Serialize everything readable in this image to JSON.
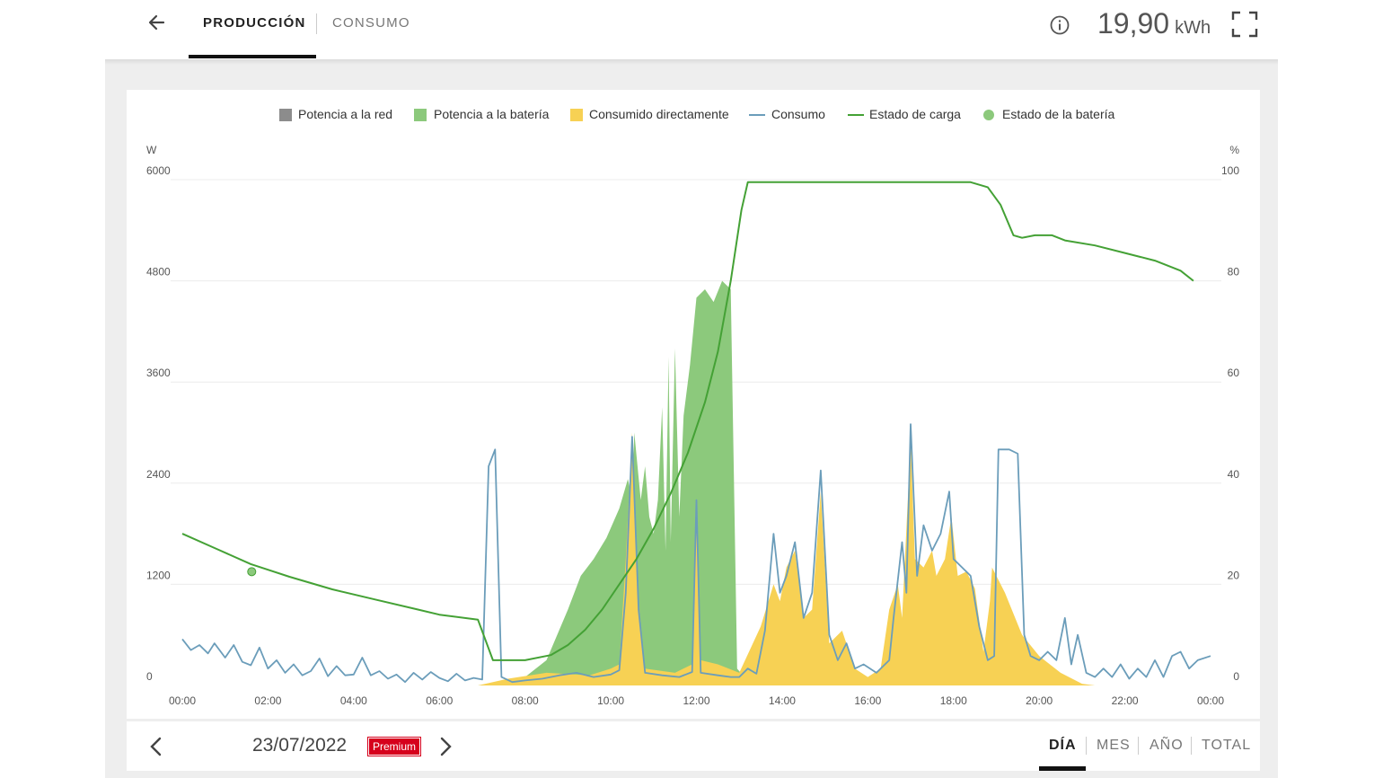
{
  "header": {
    "tabs": [
      {
        "label": "PRODUCCIÓN",
        "active": true
      },
      {
        "label": "CONSUMO",
        "active": false
      }
    ],
    "energy_value": "19,90",
    "energy_unit": "kWh",
    "icons": {
      "back": "arrow-left-icon",
      "info": "info-icon",
      "fullscreen": "fullscreen-icon"
    }
  },
  "colors": {
    "grid_power": "#8c8c8c",
    "battery_power": "#8cc97c",
    "direct_consumption": "#f7d154",
    "consumption_line": "#6b9dba",
    "state_of_charge": "#44a135",
    "battery_state": "#8cc97c"
  },
  "chart_data": {
    "type": "area",
    "legend_position": "top-center",
    "legend": [
      "Potencia a la red",
      "Potencia a la batería",
      "Consumido directamente",
      "Consumo",
      "Estado de carga",
      "Estado de la batería"
    ],
    "y_left": {
      "label": "W",
      "ticks": [
        "0",
        "1200",
        "2400",
        "3600",
        "4800",
        "6000"
      ],
      "min": 0,
      "max": 6000
    },
    "y_right": {
      "label": "%",
      "ticks": [
        "0",
        "20",
        "40",
        "60",
        "80",
        "100"
      ],
      "min": 0,
      "max": 100
    },
    "x_ticks": [
      "00:00",
      "02:00",
      "04:00",
      "06:00",
      "08:00",
      "10:00",
      "12:00",
      "14:00",
      "16:00",
      "18:00",
      "20:00",
      "22:00",
      "00:00"
    ],
    "grid": true,
    "series": [
      {
        "name": "Potencia a la batería",
        "kind": "area",
        "points": [
          [
            6.9,
            0
          ],
          [
            7.5,
            20
          ],
          [
            8.0,
            100
          ],
          [
            8.5,
            300
          ],
          [
            9.0,
            900
          ],
          [
            9.3,
            1300
          ],
          [
            9.6,
            1500
          ],
          [
            9.9,
            1750
          ],
          [
            10.2,
            2100
          ],
          [
            10.4,
            2450
          ],
          [
            10.5,
            2200
          ],
          [
            10.55,
            3000
          ],
          [
            10.7,
            2200
          ],
          [
            10.8,
            2600
          ],
          [
            10.9,
            2000
          ],
          [
            11.0,
            1800
          ],
          [
            11.1,
            2200
          ],
          [
            11.2,
            3300
          ],
          [
            11.28,
            1600
          ],
          [
            11.35,
            3900
          ],
          [
            11.4,
            1700
          ],
          [
            11.5,
            4000
          ],
          [
            11.6,
            2000
          ],
          [
            11.7,
            3200
          ],
          [
            11.85,
            3800
          ],
          [
            12.0,
            4600
          ],
          [
            12.2,
            4700
          ],
          [
            12.4,
            4550
          ],
          [
            12.6,
            4800
          ],
          [
            12.8,
            4700
          ],
          [
            12.95,
            200
          ],
          [
            13.2,
            50
          ],
          [
            13.6,
            20
          ],
          [
            14.2,
            10
          ]
        ]
      },
      {
        "name": "Consumido directamente",
        "kind": "area",
        "points": [
          [
            6.9,
            0
          ],
          [
            7.6,
            80
          ],
          [
            8.5,
            150
          ],
          [
            9.5,
            120
          ],
          [
            10.0,
            200
          ],
          [
            10.2,
            250
          ],
          [
            10.35,
            1500
          ],
          [
            10.5,
            3000
          ],
          [
            10.65,
            1000
          ],
          [
            10.8,
            200
          ],
          [
            11.5,
            150
          ],
          [
            11.9,
            250
          ],
          [
            12.0,
            2200
          ],
          [
            12.1,
            300
          ],
          [
            12.5,
            250
          ],
          [
            13.0,
            150
          ],
          [
            13.5,
            700
          ],
          [
            13.8,
            1200
          ],
          [
            13.95,
            1000
          ],
          [
            14.1,
            1400
          ],
          [
            14.3,
            1600
          ],
          [
            14.5,
            800
          ],
          [
            14.7,
            900
          ],
          [
            14.9,
            2300
          ],
          [
            15.1,
            500
          ],
          [
            15.4,
            650
          ],
          [
            15.7,
            200
          ],
          [
            16.0,
            100
          ],
          [
            16.3,
            200
          ],
          [
            16.5,
            900
          ],
          [
            16.7,
            1200
          ],
          [
            16.8,
            800
          ],
          [
            17.0,
            2900
          ],
          [
            17.1,
            1500
          ],
          [
            17.3,
            1400
          ],
          [
            17.5,
            1600
          ],
          [
            17.6,
            1300
          ],
          [
            17.8,
            1500
          ],
          [
            17.95,
            2000
          ],
          [
            18.1,
            1300
          ],
          [
            18.3,
            1350
          ],
          [
            18.5,
            1150
          ],
          [
            18.7,
            400
          ],
          [
            18.85,
            1000
          ],
          [
            18.9,
            1400
          ],
          [
            19.2,
            1100
          ],
          [
            19.6,
            600
          ],
          [
            20.0,
            350
          ],
          [
            20.5,
            150
          ],
          [
            21.0,
            20
          ],
          [
            21.3,
            0
          ]
        ]
      },
      {
        "name": "Consumo",
        "kind": "line",
        "points": [
          [
            0.0,
            550
          ],
          [
            0.2,
            420
          ],
          [
            0.4,
            480
          ],
          [
            0.6,
            380
          ],
          [
            0.75,
            500
          ],
          [
            1.0,
            330
          ],
          [
            1.2,
            480
          ],
          [
            1.4,
            280
          ],
          [
            1.6,
            240
          ],
          [
            1.8,
            450
          ],
          [
            2.0,
            200
          ],
          [
            2.2,
            300
          ],
          [
            2.4,
            150
          ],
          [
            2.6,
            250
          ],
          [
            2.8,
            120
          ],
          [
            3.0,
            170
          ],
          [
            3.2,
            320
          ],
          [
            3.4,
            110
          ],
          [
            3.6,
            230
          ],
          [
            3.8,
            120
          ],
          [
            4.0,
            130
          ],
          [
            4.2,
            330
          ],
          [
            4.4,
            120
          ],
          [
            4.6,
            170
          ],
          [
            4.8,
            80
          ],
          [
            5.0,
            130
          ],
          [
            5.2,
            40
          ],
          [
            5.4,
            150
          ],
          [
            5.6,
            70
          ],
          [
            5.8,
            160
          ],
          [
            6.0,
            90
          ],
          [
            6.2,
            50
          ],
          [
            6.4,
            140
          ],
          [
            6.6,
            60
          ],
          [
            6.8,
            90
          ],
          [
            7.0,
            70
          ],
          [
            7.15,
            2600
          ],
          [
            7.3,
            2800
          ],
          [
            7.45,
            100
          ],
          [
            7.7,
            40
          ],
          [
            8.0,
            60
          ],
          [
            8.4,
            80
          ],
          [
            8.8,
            120
          ],
          [
            9.2,
            150
          ],
          [
            9.6,
            100
          ],
          [
            10.0,
            130
          ],
          [
            10.2,
            180
          ],
          [
            10.35,
            1100
          ],
          [
            10.5,
            2950
          ],
          [
            10.65,
            900
          ],
          [
            10.8,
            150
          ],
          [
            11.2,
            120
          ],
          [
            11.6,
            100
          ],
          [
            11.9,
            160
          ],
          [
            12.0,
            2200
          ],
          [
            12.1,
            150
          ],
          [
            12.5,
            120
          ],
          [
            12.8,
            100
          ],
          [
            13.0,
            100
          ],
          [
            13.2,
            200
          ],
          [
            13.4,
            140
          ],
          [
            13.6,
            650
          ],
          [
            13.8,
            1800
          ],
          [
            13.95,
            1100
          ],
          [
            14.1,
            1300
          ],
          [
            14.3,
            1700
          ],
          [
            14.5,
            800
          ],
          [
            14.7,
            1100
          ],
          [
            14.9,
            2550
          ],
          [
            15.1,
            600
          ],
          [
            15.3,
            300
          ],
          [
            15.5,
            500
          ],
          [
            15.7,
            200
          ],
          [
            15.9,
            250
          ],
          [
            16.2,
            150
          ],
          [
            16.5,
            300
          ],
          [
            16.6,
            800
          ],
          [
            16.8,
            1700
          ],
          [
            16.9,
            1100
          ],
          [
            17.0,
            3100
          ],
          [
            17.15,
            1300
          ],
          [
            17.3,
            1900
          ],
          [
            17.5,
            1600
          ],
          [
            17.7,
            1800
          ],
          [
            17.9,
            2300
          ],
          [
            18.0,
            1500
          ],
          [
            18.2,
            1400
          ],
          [
            18.4,
            1300
          ],
          [
            18.6,
            700
          ],
          [
            18.8,
            300
          ],
          [
            18.95,
            350
          ],
          [
            19.05,
            2800
          ],
          [
            19.3,
            2800
          ],
          [
            19.5,
            2750
          ],
          [
            19.65,
            600
          ],
          [
            19.8,
            350
          ],
          [
            20.0,
            300
          ],
          [
            20.2,
            400
          ],
          [
            20.4,
            300
          ],
          [
            20.6,
            800
          ],
          [
            20.75,
            250
          ],
          [
            20.9,
            600
          ],
          [
            21.1,
            150
          ],
          [
            21.3,
            100
          ],
          [
            21.5,
            200
          ],
          [
            21.7,
            100
          ],
          [
            21.9,
            250
          ],
          [
            22.1,
            80
          ],
          [
            22.3,
            200
          ],
          [
            22.5,
            100
          ],
          [
            22.7,
            300
          ],
          [
            22.9,
            100
          ],
          [
            23.1,
            350
          ],
          [
            23.3,
            400
          ],
          [
            23.5,
            200
          ],
          [
            23.7,
            300
          ],
          [
            24.0,
            350
          ]
        ]
      },
      {
        "name": "Estado de carga",
        "kind": "line",
        "axis": "right",
        "points": [
          [
            0.0,
            30
          ],
          [
            0.8,
            27
          ],
          [
            1.6,
            24
          ],
          [
            2.5,
            21.5
          ],
          [
            3.5,
            19
          ],
          [
            4.5,
            17
          ],
          [
            5.5,
            15
          ],
          [
            6.0,
            14
          ],
          [
            6.9,
            13
          ],
          [
            7.25,
            5
          ],
          [
            8.0,
            5
          ],
          [
            8.6,
            6
          ],
          [
            9.0,
            8
          ],
          [
            9.4,
            11
          ],
          [
            9.8,
            15
          ],
          [
            10.2,
            20
          ],
          [
            10.6,
            25
          ],
          [
            11.0,
            31
          ],
          [
            11.4,
            38
          ],
          [
            11.8,
            46
          ],
          [
            12.2,
            56
          ],
          [
            12.5,
            66
          ],
          [
            12.8,
            80
          ],
          [
            13.05,
            94
          ],
          [
            13.2,
            99.5
          ],
          [
            18.4,
            99.5
          ],
          [
            18.8,
            98.5
          ],
          [
            19.1,
            95
          ],
          [
            19.4,
            89
          ],
          [
            19.6,
            88.5
          ],
          [
            19.9,
            89
          ],
          [
            20.3,
            89
          ],
          [
            20.6,
            88
          ],
          [
            21.3,
            87
          ],
          [
            22.0,
            85.5
          ],
          [
            22.7,
            84
          ],
          [
            23.3,
            82
          ],
          [
            23.6,
            80
          ]
        ]
      },
      {
        "name": "Estado de la batería",
        "kind": "point",
        "axis": "right",
        "points": [
          [
            1.62,
            22.5
          ]
        ]
      }
    ]
  },
  "footer": {
    "date": "23/07/2022",
    "badge": "Premium",
    "periods": [
      {
        "label": "DÍA",
        "active": true
      },
      {
        "label": "MES",
        "active": false
      },
      {
        "label": "AÑO",
        "active": false
      },
      {
        "label": "TOTAL",
        "active": false
      }
    ],
    "icons": {
      "prev": "chevron-left-icon",
      "next": "chevron-right-icon"
    }
  }
}
